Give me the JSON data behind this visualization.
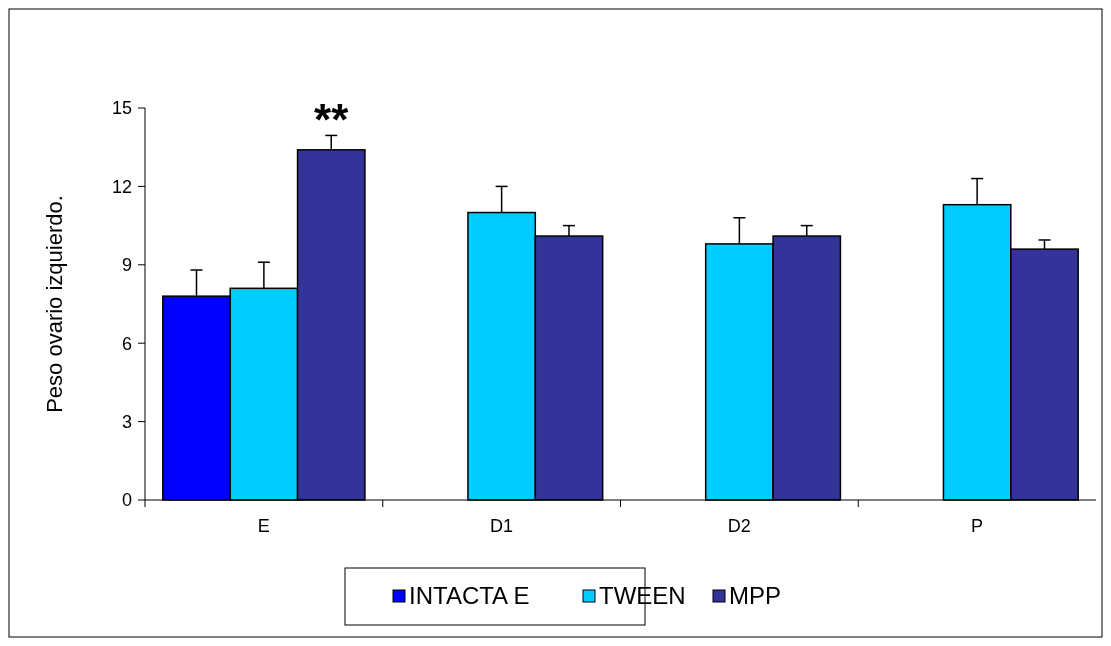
{
  "chart_data": {
    "type": "bar",
    "ylabel": "Peso ovario izquierdo.",
    "categories": [
      "E",
      "D1",
      "D2",
      "P"
    ],
    "series": [
      {
        "name": "INTACTA E",
        "color": "#0000ff",
        "values": [
          7.8,
          null,
          null,
          null
        ],
        "errors": [
          [
            7.8,
            8.8
          ],
          null,
          null,
          null
        ]
      },
      {
        "name": "TWEEN",
        "color": "#00ccff",
        "values": [
          8.1,
          11.0,
          9.8,
          11.3
        ],
        "errors": [
          [
            8.1,
            9.1
          ],
          [
            11.0,
            12.0
          ],
          [
            9.8,
            10.8
          ],
          [
            11.3,
            12.3
          ]
        ]
      },
      {
        "name": "MPP",
        "color": "#333399",
        "values": [
          13.4,
          10.1,
          10.1,
          9.6
        ],
        "errors": [
          [
            13.4,
            13.95
          ],
          [
            10.1,
            10.5
          ],
          [
            10.1,
            10.5
          ],
          [
            9.6,
            9.95
          ]
        ]
      }
    ],
    "ylim": [
      0,
      15
    ],
    "yticks": [
      0,
      3,
      6,
      9,
      12,
      15
    ],
    "grid": false,
    "legend": "bottom",
    "annotations": [
      "**"
    ]
  }
}
